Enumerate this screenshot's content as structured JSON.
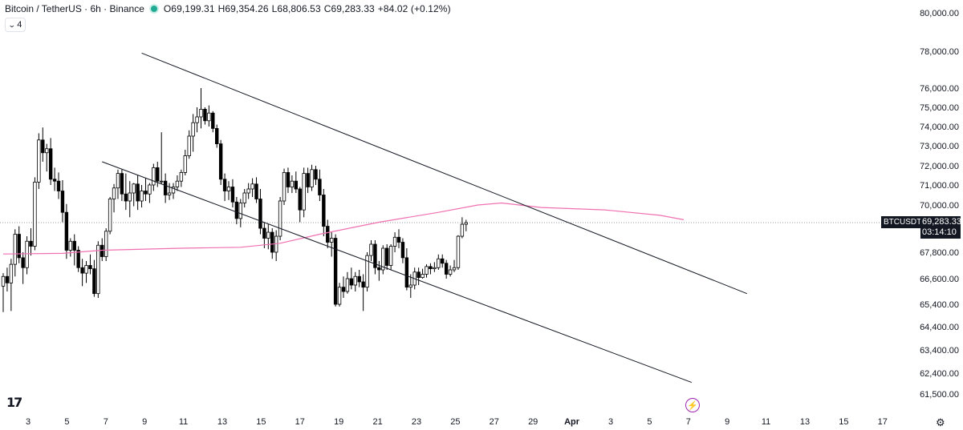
{
  "header": {
    "symbol": "Bitcoin / TetherUS · 6h · Binance",
    "open": "O69,199.31",
    "high": "H69,354.26",
    "low": "L68,806.53",
    "close": "C69,283.33",
    "change": "+84.02 (+0.12%)",
    "indicator_count": "4",
    "status_color": "#22ab94"
  },
  "price_tag": {
    "symbol": "BTCUSDT",
    "price": "69,283.33",
    "countdown": "03:14:10"
  },
  "icons": {
    "logo": "tradingview-logo-icon",
    "alert": "lightning-icon",
    "settings": "gear-icon"
  },
  "colors": {
    "candle_up": "#ffffff",
    "candle_down": "#000000",
    "ma_line": "#f06fb1",
    "trend_lines": "#131722"
  },
  "chart_data": {
    "type": "candlestick",
    "title": "Bitcoin / TetherUS · 6h · Binance",
    "ylim": [
      61000,
      80500
    ],
    "y_ticks": [
      "80,000.00",
      "78,000.00",
      "76,000.00",
      "75,000.00",
      "74,000.00",
      "73,000.00",
      "72,000.00",
      "71,000.00",
      "70,000.00",
      "67,800.00",
      "66,600.00",
      "65,400.00",
      "64,400.00",
      "63,400.00",
      "62,400.00",
      "61,500.00"
    ],
    "x_ticks": [
      "3",
      "5",
      "7",
      "9",
      "11",
      "13",
      "15",
      "17",
      "19",
      "21",
      "23",
      "25",
      "27",
      "29",
      "Apr",
      "3",
      "5",
      "7",
      "9",
      "11",
      "13",
      "15",
      "17"
    ],
    "series": [
      {
        "name": "candles",
        "ohlc": [
          [
            66250,
            66850,
            65050,
            66700
          ],
          [
            66700,
            67100,
            66000,
            66400
          ],
          [
            66400,
            67500,
            65100,
            67250
          ],
          [
            67250,
            68950,
            66700,
            68700
          ],
          [
            68700,
            69100,
            67300,
            67550
          ],
          [
            67550,
            67800,
            66350,
            67100
          ],
          [
            67100,
            68600,
            66800,
            68350
          ],
          [
            68350,
            69000,
            67650,
            68100
          ],
          [
            68100,
            71400,
            67900,
            71150
          ],
          [
            71150,
            73650,
            70800,
            73300
          ],
          [
            73300,
            73950,
            72200,
            72650
          ],
          [
            72650,
            73100,
            71700,
            72850
          ],
          [
            72850,
            73400,
            71000,
            71300
          ],
          [
            71300,
            71900,
            70700,
            71200
          ],
          [
            71200,
            71650,
            70300,
            70700
          ],
          [
            70700,
            71250,
            69300,
            69700
          ],
          [
            69700,
            70050,
            67500,
            67900
          ],
          [
            67900,
            68500,
            67600,
            68350
          ],
          [
            68350,
            68700,
            67200,
            67900
          ],
          [
            67900,
            68100,
            66900,
            67100
          ],
          [
            67100,
            67500,
            66250,
            66850
          ],
          [
            66850,
            67400,
            66400,
            67200
          ],
          [
            67200,
            67700,
            66800,
            67050
          ],
          [
            67050,
            67450,
            65750,
            65900
          ],
          [
            65900,
            68350,
            65700,
            68150
          ],
          [
            68150,
            68500,
            67400,
            67600
          ],
          [
            67600,
            69000,
            67400,
            68850
          ],
          [
            68850,
            70400,
            68700,
            70300
          ],
          [
            70300,
            71050,
            69700,
            70850
          ],
          [
            70850,
            71800,
            70300,
            71600
          ],
          [
            71600,
            71800,
            70200,
            70550
          ],
          [
            70550,
            71600,
            69800,
            70200
          ],
          [
            70200,
            71200,
            69500,
            70600
          ],
          [
            70600,
            71100,
            69950,
            71050
          ],
          [
            71050,
            71500,
            69800,
            70200
          ],
          [
            70200,
            71000,
            69900,
            70700
          ],
          [
            70700,
            71350,
            70200,
            70550
          ],
          [
            70550,
            71100,
            70100,
            71000
          ],
          [
            71000,
            72100,
            70700,
            71900
          ],
          [
            71900,
            72200,
            70900,
            71200
          ],
          [
            71200,
            73700,
            71050,
            71200
          ],
          [
            71200,
            71600,
            70100,
            70500
          ],
          [
            70500,
            71100,
            70250,
            70600
          ],
          [
            70600,
            71100,
            70300,
            70900
          ],
          [
            70900,
            71500,
            70700,
            71200
          ],
          [
            71200,
            71800,
            70900,
            71650
          ],
          [
            71650,
            72800,
            71500,
            72500
          ],
          [
            72500,
            73800,
            72350,
            73500
          ],
          [
            73500,
            74650,
            72700,
            74200
          ],
          [
            74200,
            75000,
            73700,
            74500
          ],
          [
            74500,
            76000,
            73900,
            74900
          ],
          [
            74900,
            75000,
            74100,
            74300
          ],
          [
            74300,
            75100,
            74000,
            74700
          ],
          [
            74700,
            74800,
            73700,
            73900
          ],
          [
            73900,
            74100,
            72900,
            73100
          ],
          [
            73100,
            73300,
            71000,
            71300
          ],
          [
            71300,
            71600,
            70200,
            70700
          ],
          [
            70700,
            71200,
            70250,
            70900
          ],
          [
            70900,
            71300,
            69900,
            70150
          ],
          [
            70150,
            70400,
            69200,
            69450
          ],
          [
            69450,
            70300,
            69050,
            70100
          ],
          [
            70100,
            70800,
            69900,
            70600
          ],
          [
            70600,
            71100,
            70300,
            70800
          ],
          [
            70800,
            71350,
            70400,
            71050
          ],
          [
            71050,
            71400,
            70100,
            70300
          ],
          [
            70300,
            70800,
            68700,
            69000
          ],
          [
            69000,
            69300,
            68000,
            68500
          ],
          [
            68500,
            69200,
            67950,
            68800
          ],
          [
            68800,
            69000,
            67500,
            67800
          ],
          [
            67800,
            68900,
            67400,
            68600
          ],
          [
            68600,
            70400,
            68400,
            70200
          ],
          [
            70200,
            71850,
            70000,
            71650
          ],
          [
            71650,
            71900,
            70600,
            70900
          ],
          [
            70900,
            71500,
            70600,
            71200
          ],
          [
            71200,
            71700,
            70600,
            70800
          ],
          [
            70800,
            70900,
            69300,
            69800
          ],
          [
            69800,
            71900,
            69500,
            71600
          ],
          [
            71600,
            71900,
            70600,
            70900
          ],
          [
            70900,
            72050,
            70700,
            71800
          ],
          [
            71800,
            72000,
            71000,
            71300
          ],
          [
            71300,
            71800,
            70200,
            70500
          ],
          [
            70500,
            70800,
            68600,
            69100
          ],
          [
            69100,
            69400,
            68000,
            68300
          ],
          [
            68300,
            68800,
            67600,
            68500
          ],
          [
            68500,
            68700,
            65300,
            65400
          ],
          [
            65400,
            66400,
            65300,
            66200
          ],
          [
            66200,
            66700,
            65700,
            66000
          ],
          [
            66000,
            66900,
            65900,
            66600
          ],
          [
            66600,
            67100,
            66100,
            66300
          ],
          [
            66300,
            66900,
            66000,
            66700
          ],
          [
            66700,
            67000,
            66200,
            66450
          ],
          [
            66450,
            66800,
            65100,
            66200
          ],
          [
            66200,
            67800,
            66000,
            67650
          ],
          [
            67650,
            68400,
            67400,
            68200
          ],
          [
            68200,
            68400,
            66800,
            67100
          ],
          [
            67100,
            67400,
            66500,
            67000
          ],
          [
            67000,
            68150,
            66800,
            68000
          ],
          [
            68000,
            68200,
            67000,
            67200
          ],
          [
            67200,
            68200,
            67000,
            68100
          ],
          [
            68100,
            68800,
            67800,
            68550
          ],
          [
            68550,
            68950,
            68000,
            68300
          ],
          [
            68300,
            68500,
            67300,
            67550
          ],
          [
            67550,
            68000,
            66050,
            66200
          ],
          [
            66200,
            66800,
            65700,
            66300
          ],
          [
            66300,
            67100,
            66100,
            66900
          ],
          [
            66900,
            67100,
            66300,
            66650
          ],
          [
            66650,
            67050,
            66600,
            66800
          ],
          [
            66800,
            67250,
            66650,
            67150
          ],
          [
            67150,
            67300,
            66800,
            67050
          ],
          [
            67050,
            67350,
            66900,
            67100
          ],
          [
            67100,
            67700,
            67000,
            67500
          ],
          [
            67500,
            67700,
            67100,
            67300
          ],
          [
            67300,
            67450,
            66600,
            66800
          ],
          [
            66800,
            67200,
            66700,
            67000
          ],
          [
            67000,
            67450,
            66900,
            67100
          ],
          [
            67100,
            68650,
            67000,
            68600
          ],
          [
            68600,
            69500,
            68500,
            69200
          ],
          [
            69200,
            69400,
            68850,
            69283
          ]
        ]
      },
      {
        "name": "moving-average",
        "values": [
          [
            0,
            67720
          ],
          [
            15,
            67750
          ],
          [
            25,
            67900
          ],
          [
            45,
            68000
          ],
          [
            60,
            68050
          ],
          [
            70,
            68250
          ],
          [
            80,
            68700
          ],
          [
            95,
            69300
          ],
          [
            110,
            69700
          ],
          [
            120,
            70000
          ],
          [
            126,
            70100
          ],
          [
            136,
            69900
          ],
          [
            152,
            69800
          ],
          [
            166,
            69580
          ],
          [
            172,
            69400
          ]
        ]
      }
    ],
    "trend_lines": [
      {
        "name": "channel-upper",
        "points": [
          [
            35,
            77900
          ],
          [
            188,
            65900
          ]
        ]
      },
      {
        "name": "channel-lower",
        "points": [
          [
            25,
            72200
          ],
          [
            174,
            62000
          ]
        ]
      }
    ],
    "last_price": 69283.33
  }
}
